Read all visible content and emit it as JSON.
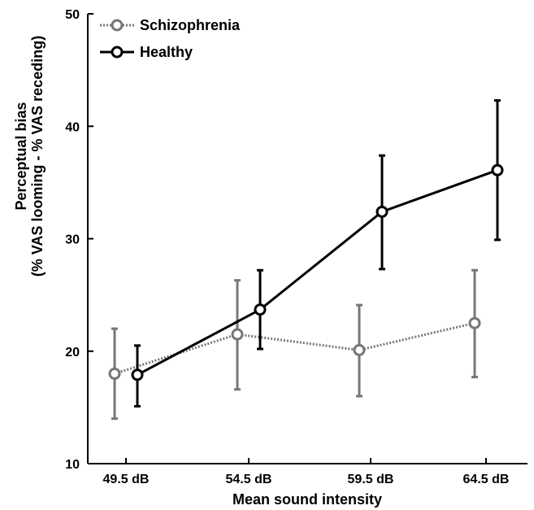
{
  "chart_data": {
    "type": "line",
    "title": "",
    "xlabel": "Mean sound intensity",
    "ylabel_lines": [
      "Perceptual bias",
      "(% VAS looming - % VAS receding)"
    ],
    "categories": [
      "49.5 dB",
      "54.5 dB",
      "59.5 dB",
      "64.5 dB"
    ],
    "ylim": [
      10,
      50
    ],
    "yticks": [
      10,
      20,
      30,
      40,
      50
    ],
    "grid": false,
    "legend_position": "top-left",
    "series": [
      {
        "name": "Schizophrenia",
        "color": "#777777",
        "line_style": "dotted",
        "values": [
          18.0,
          21.5,
          20.1,
          22.5
        ],
        "error_low": [
          14.0,
          16.6,
          16.0,
          17.7
        ],
        "error_high": [
          22.0,
          26.3,
          24.1,
          27.2
        ]
      },
      {
        "name": "Healthy",
        "color": "#000000",
        "line_style": "solid",
        "values": [
          17.9,
          23.7,
          32.4,
          36.1
        ],
        "error_low": [
          15.1,
          20.2,
          27.3,
          29.9
        ],
        "error_high": [
          20.5,
          27.2,
          37.4,
          42.3
        ]
      }
    ]
  }
}
